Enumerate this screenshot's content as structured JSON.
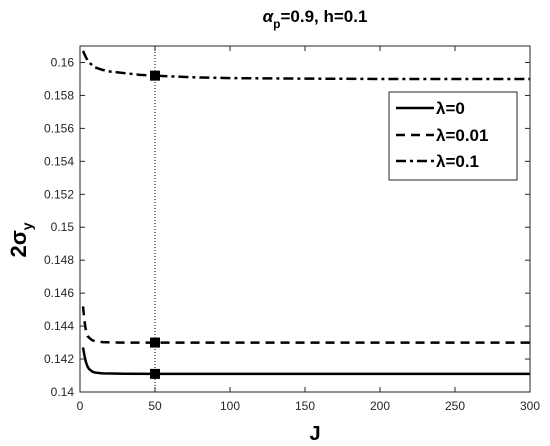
{
  "chart_data": {
    "type": "line",
    "title": "α_p=0.9, h=0.1",
    "title_parts": {
      "alpha": "α",
      "sub": "p",
      "rest": "=0.9, h=0.1"
    },
    "xlabel": "J",
    "ylabel": "2σ_y",
    "ylabel_parts": {
      "main": "2σ",
      "sub": "y"
    },
    "xlim": [
      0,
      300
    ],
    "ylim": [
      0.14,
      0.161
    ],
    "xticks": [
      0,
      50,
      100,
      150,
      200,
      250,
      300
    ],
    "xtick_labels": [
      "0",
      "50",
      "100",
      "150",
      "200",
      "250",
      "300"
    ],
    "yticks": [
      0.14,
      0.142,
      0.144,
      0.146,
      0.148,
      0.15,
      0.152,
      0.154,
      0.156,
      0.158,
      0.16
    ],
    "ytick_labels": [
      "0.14",
      "0.142",
      "0.144",
      "0.146",
      "0.148",
      "0.15",
      "0.152",
      "0.154",
      "0.156",
      "0.158",
      "0.16"
    ],
    "grid": false,
    "legend_position": "top-right",
    "vertical_reference_line": {
      "x": 50,
      "style": "dotted"
    },
    "series": [
      {
        "name": "λ=0",
        "style": "solid",
        "x": [
          2,
          3,
          4,
          5,
          6,
          8,
          10,
          15,
          20,
          30,
          50,
          100,
          150,
          200,
          250,
          300
        ],
        "values": [
          0.1427,
          0.1422,
          0.1418,
          0.14155,
          0.1414,
          0.14125,
          0.14118,
          0.14113,
          0.14112,
          0.14111,
          0.1411,
          0.1411,
          0.1411,
          0.1411,
          0.1411,
          0.1411
        ],
        "marker": {
          "x": 50,
          "y": 0.1411
        }
      },
      {
        "name": "λ=0.01",
        "style": "dashed",
        "x": [
          2,
          3,
          4,
          5,
          6,
          8,
          10,
          15,
          20,
          30,
          50,
          100,
          150,
          200,
          250,
          300
        ],
        "values": [
          0.1452,
          0.1443,
          0.1437,
          0.1434,
          0.1433,
          0.14315,
          0.14308,
          0.14303,
          0.14301,
          0.143,
          0.143,
          0.143,
          0.143,
          0.143,
          0.143,
          0.143
        ],
        "marker": {
          "x": 50,
          "y": 0.143
        }
      },
      {
        "name": "λ=0.1",
        "style": "dashdot",
        "x": [
          2,
          4,
          6,
          8,
          10,
          15,
          20,
          30,
          40,
          50,
          75,
          100,
          150,
          200,
          250,
          300
        ],
        "values": [
          0.1607,
          0.1603,
          0.16,
          0.15985,
          0.1597,
          0.15955,
          0.15945,
          0.15935,
          0.15925,
          0.1592,
          0.1591,
          0.15905,
          0.15902,
          0.159,
          0.159,
          0.159
        ],
        "marker": {
          "x": 50,
          "y": 0.1592
        }
      }
    ]
  },
  "colors": {
    "line": "#000000",
    "axis": "#262626",
    "background": "#ffffff"
  }
}
